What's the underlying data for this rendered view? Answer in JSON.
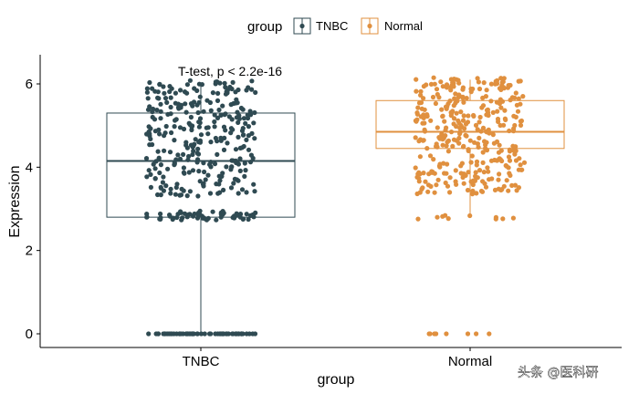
{
  "chart_data": {
    "type": "boxplot",
    "xlabel": "group",
    "ylabel": "Expression",
    "ylim": [
      -0.3,
      6.7
    ],
    "yticks": [
      0,
      2,
      4,
      6
    ],
    "categories": [
      "TNBC",
      "Normal"
    ],
    "legend": {
      "title": "group",
      "position": "top",
      "entries": [
        "TNBC",
        "Normal"
      ]
    },
    "annotation": "T-test, p < 2.2e-16",
    "series": [
      {
        "name": "TNBC",
        "color": "#2f4a52",
        "box": {
          "q1": 2.8,
          "median": 4.15,
          "q3": 5.3,
          "whisker_low": 0.0,
          "whisker_high": 6.0
        },
        "jitter": {
          "bands": [
            [
              0.0,
              0.0
            ],
            [
              2.73,
              2.95
            ],
            [
              3.3,
              6.1
            ]
          ],
          "counts": [
            60,
            60,
            300
          ]
        }
      },
      {
        "name": "Normal",
        "color": "#e0903f",
        "box": {
          "q1": 4.45,
          "median": 4.85,
          "q3": 5.6,
          "whisker_low": 2.85,
          "whisker_high": 6.1
        },
        "jitter": {
          "bands": [
            [
              0.0,
              0.0
            ],
            [
              2.75,
              2.85
            ],
            [
              3.35,
              6.15
            ]
          ],
          "counts": [
            8,
            10,
            350
          ]
        }
      }
    ],
    "grid": false
  },
  "watermark": "头条 @医科研"
}
